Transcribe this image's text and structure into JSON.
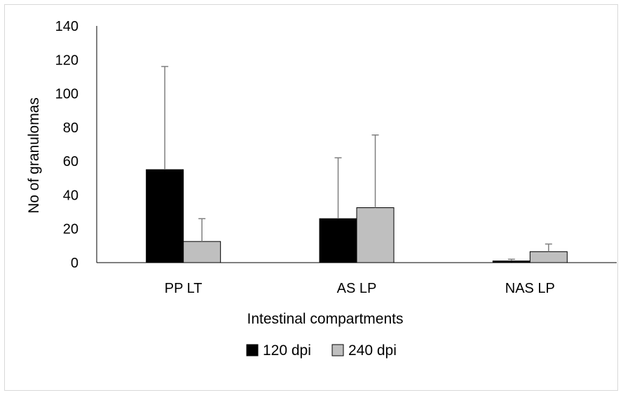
{
  "chart_data": {
    "type": "bar",
    "title": "",
    "xlabel": "Intestinal compartments",
    "ylabel": "No of granulomas",
    "ylim": [
      0,
      140
    ],
    "yticks": [
      0,
      20,
      40,
      60,
      80,
      100,
      120,
      140
    ],
    "categories": [
      "PP LT",
      "AS LP",
      "NAS LP"
    ],
    "series": [
      {
        "name": "120 dpi",
        "values": [
          55,
          26,
          1
        ],
        "errors": [
          61,
          36,
          1
        ],
        "color": "#000000"
      },
      {
        "name": "240 dpi",
        "values": [
          12.5,
          32.5,
          6.5
        ],
        "errors": [
          13.5,
          43,
          4.5
        ],
        "color": "#bfbfbf"
      }
    ],
    "grid": false,
    "legend_position": "bottom",
    "error_bars": "upper"
  }
}
